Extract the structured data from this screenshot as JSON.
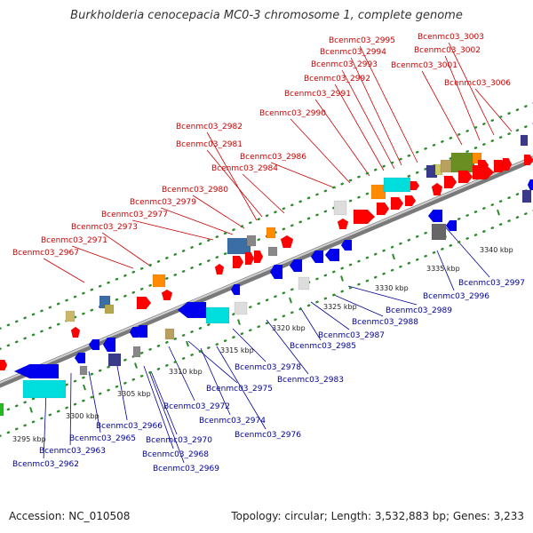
{
  "title": "Burkholderia cenocepacia MC0-3 chromosome 1, complete genome",
  "footer": {
    "accession": "Accession: NC_010508",
    "summary": "Topology: circular; Length: 3,532,883 bp; Genes: 3,233"
  },
  "colors": {
    "backbone": "#8c8c8c",
    "backbone_light": "#cfcfcf",
    "dots": "#2e8b2e",
    "ticks": "#2e8b2e",
    "forward_label": "#cc0000",
    "reverse_label": "#000099",
    "forward_gene": "#ff0000",
    "reverse_gene": "#0000ee"
  },
  "scale_labels": [
    "3295 kbp",
    "3300 kbp",
    "3305 kbp",
    "3310 kbp",
    "3315 kbp",
    "3320 kbp",
    "3325 kbp",
    "3330 kbp",
    "3335 kbp",
    "3340 kbp"
  ],
  "forward_labels": [
    "Bcenmc03_2967",
    "Bcenmc03_2971",
    "Bcenmc03_2973",
    "Bcenmc03_2977",
    "Bcenmc03_2979",
    "Bcenmc03_2980",
    "Bcenmc03_2984",
    "Bcenmc03_2986",
    "Bcenmc03_2981",
    "Bcenmc03_2982",
    "Bcenmc03_2990",
    "Bcenmc03_2991",
    "Bcenmc03_2992",
    "Bcenmc03_2993",
    "Bcenmc03_2994",
    "Bcenmc03_2995",
    "Bcenmc03_3001",
    "Bcenmc03_3002",
    "Bcenmc03_3003",
    "Bcenmc03_3006"
  ],
  "reverse_labels": [
    "Bcenmc03_2962",
    "Bcenmc03_2963",
    "Bcenmc03_2965",
    "Bcenmc03_2966",
    "Bcenmc03_2968",
    "Bcenmc03_2969",
    "Bcenmc03_2970",
    "Bcenmc03_2972",
    "Bcenmc03_2974",
    "Bcenmc03_2975",
    "Bcenmc03_2976",
    "Bcenmc03_2978",
    "Bcenmc03_2983",
    "Bcenmc03_2985",
    "Bcenmc03_2987",
    "Bcenmc03_2988",
    "Bcenmc03_2989",
    "Bcenmc03_2996",
    "Bcenmc03_2997"
  ]
}
